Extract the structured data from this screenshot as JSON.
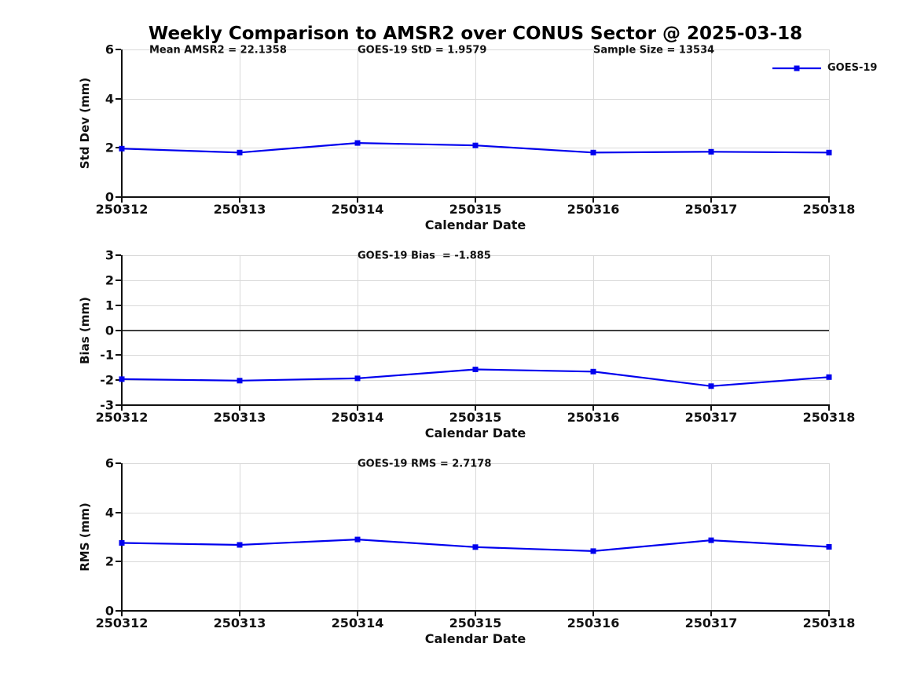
{
  "title": "Weekly Comparison to AMSR2 over CONUS Sector @ 2025-03-18",
  "colors": {
    "line": "#0000ee",
    "grid": "#d9d9d9",
    "spine": "#111111",
    "zero_line": "#3f3f3f",
    "text": "#111111"
  },
  "legend": {
    "label": "GOES-19"
  },
  "chart_data": [
    {
      "type": "line",
      "name": "std-dev",
      "ylabel": "Std Dev (mm)",
      "xlabel": "Calendar Date",
      "categories": [
        "250312",
        "250313",
        "250314",
        "250315",
        "250316",
        "250317",
        "250318"
      ],
      "yticks": [
        0,
        2,
        4,
        6
      ],
      "ylim": [
        0,
        6
      ],
      "grid": true,
      "legend_entry": "GOES-19",
      "annotations": [
        "Mean AMSR2 = 22.1358",
        "GOES-19 StD = 1.9579",
        "Sample Size = 13534"
      ],
      "series": [
        {
          "name": "GOES-19",
          "values": [
            1.97,
            1.81,
            2.2,
            2.1,
            1.81,
            1.84,
            1.81
          ]
        }
      ]
    },
    {
      "type": "line",
      "name": "bias",
      "ylabel": "Bias (mm)",
      "xlabel": "Calendar Date",
      "categories": [
        "250312",
        "250313",
        "250314",
        "250315",
        "250316",
        "250317",
        "250318"
      ],
      "yticks": [
        -3,
        -2,
        -1,
        0,
        1,
        2,
        3
      ],
      "ylim": [
        -3,
        3
      ],
      "grid": true,
      "refline_y": 0,
      "annotations": [
        "GOES-19 Bias  = -1.885"
      ],
      "series": [
        {
          "name": "GOES-19",
          "values": [
            -1.96,
            -2.02,
            -1.93,
            -1.57,
            -1.66,
            -2.24,
            -1.88
          ]
        }
      ]
    },
    {
      "type": "line",
      "name": "rms",
      "ylabel": "RMS (mm)",
      "xlabel": "Calendar Date",
      "categories": [
        "250312",
        "250313",
        "250314",
        "250315",
        "250316",
        "250317",
        "250318"
      ],
      "yticks": [
        0,
        2,
        4,
        6
      ],
      "ylim": [
        0,
        6
      ],
      "grid": true,
      "annotations": [
        "GOES-19 RMS = 2.7178"
      ],
      "series": [
        {
          "name": "GOES-19",
          "values": [
            2.76,
            2.68,
            2.9,
            2.59,
            2.43,
            2.87,
            2.6
          ]
        }
      ]
    }
  ]
}
